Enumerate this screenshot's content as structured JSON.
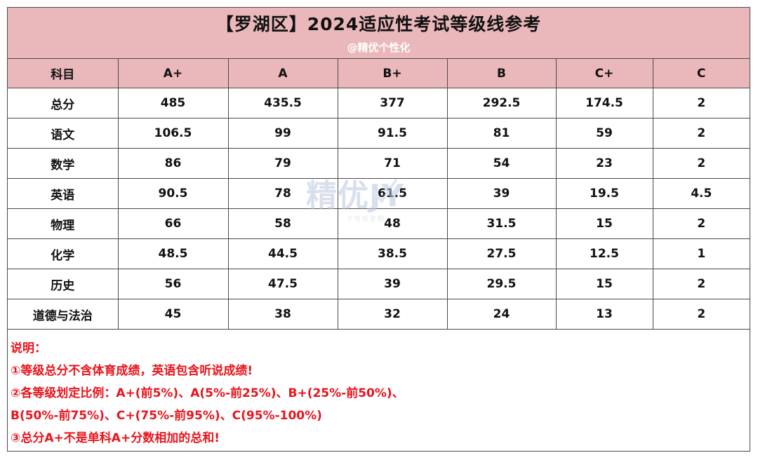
{
  "header": {
    "title": "【罗湖区】2024适应性考试等级线参考",
    "subtitle": "@精优个性化"
  },
  "table": {
    "columns": [
      "科目",
      "A+",
      "A",
      "B+",
      "B",
      "C+",
      "C"
    ],
    "rows": [
      [
        "总分",
        "485",
        "435.5",
        "377",
        "292.5",
        "174.5",
        "2"
      ],
      [
        "语文",
        "106.5",
        "99",
        "91.5",
        "81",
        "59",
        "2"
      ],
      [
        "数学",
        "86",
        "79",
        "71",
        "54",
        "23",
        "2"
      ],
      [
        "英语",
        "90.5",
        "78",
        "61.5",
        "39",
        "19.5",
        "4.5"
      ],
      [
        "物理",
        "66",
        "58",
        "48",
        "31.5",
        "15",
        "2"
      ],
      [
        "化学",
        "48.5",
        "44.5",
        "38.5",
        "27.5",
        "12.5",
        "1"
      ],
      [
        "历史",
        "56",
        "47.5",
        "39",
        "29.5",
        "15",
        "2"
      ],
      [
        "道德与法治",
        "45",
        "38",
        "32",
        "24",
        "13",
        "2"
      ]
    ]
  },
  "watermark": {
    "main": "精优JY",
    "sub": "个性化定制"
  },
  "notes": {
    "heading": "说明：",
    "lines": [
      "①等级总分不含体育成绩，英语包含听说成绩!",
      "②各等级划定比例：A+(前5%)、A(5%-前25%)、B+(25%-前50%)、",
      "B(50%-前75%)、C+(75%-前95%)、C(95%-100%)",
      "③总分A+不是单科A+分数相加的总和!"
    ]
  },
  "colors": {
    "header_band": "#eab8bb",
    "note_text": "#e8141c",
    "grid_line": "#4a4a4a"
  }
}
